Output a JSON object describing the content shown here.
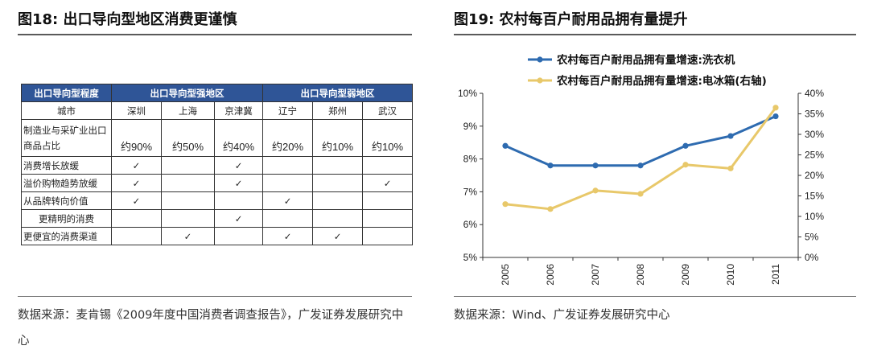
{
  "left": {
    "title": "图18: 出口导向型地区消费更谨慎",
    "table": {
      "header": [
        "出口导向型程度",
        "出口导向型强地区",
        "出口导向型弱地区"
      ],
      "city_label": "城市",
      "cities": [
        "深圳",
        "上海",
        "京津冀",
        "辽宁",
        "郑州",
        "武汉"
      ],
      "share_label": "制造业与采矿业出口商品占比",
      "shares": [
        "约90%",
        "约50%",
        "约40%",
        "约20%",
        "约10%",
        "约10%"
      ],
      "rows": [
        {
          "label": "消费增长放缓",
          "marks": [
            "✓",
            "",
            "✓",
            "",
            "",
            ""
          ]
        },
        {
          "label": "溢价购物趋势放缓",
          "marks": [
            "✓",
            "",
            "✓",
            "",
            "",
            "✓"
          ]
        },
        {
          "label": "从品牌转向价值",
          "marks": [
            "✓",
            "",
            "",
            "✓",
            "",
            ""
          ]
        },
        {
          "label": "更精明的消费",
          "marks": [
            "",
            "",
            "✓",
            "",
            "",
            ""
          ]
        },
        {
          "label": "更便宜的消费渠道",
          "marks": [
            "",
            "✓",
            "",
            "✓",
            "✓",
            ""
          ]
        }
      ]
    },
    "source": "数据来源：麦肯锡《2009年度中国消费者调查报告》，广发证券发展研究中心"
  },
  "right": {
    "title": "图19: 农村每百户耐用品拥有量提升",
    "source": "数据来源：Wind、广发证券发展研究中心"
  },
  "chart_data": {
    "type": "line",
    "title": "",
    "x": [
      "2005",
      "2006",
      "2007",
      "2008",
      "2009",
      "2010",
      "2011"
    ],
    "series": [
      {
        "name": "农村每百户耐用品拥有量增速:洗衣机",
        "axis": "left",
        "color": "#2e6bb0",
        "values": [
          8.4,
          7.8,
          7.8,
          7.8,
          8.4,
          8.7,
          9.3
        ]
      },
      {
        "name": "农村每百户耐用品拥有量增速:电冰箱(右轴)",
        "axis": "right",
        "color": "#e8c86a",
        "values": [
          13.0,
          11.8,
          16.3,
          15.5,
          22.6,
          21.7,
          36.5
        ]
      }
    ],
    "y_left": {
      "min": 5,
      "max": 10,
      "step": 1,
      "ticks": [
        "5%",
        "6%",
        "7%",
        "8%",
        "9%",
        "10%"
      ]
    },
    "y_right": {
      "min": 0,
      "max": 40,
      "step": 5,
      "ticks": [
        "0%",
        "5%",
        "10%",
        "15%",
        "20%",
        "25%",
        "30%",
        "35%",
        "40%"
      ]
    },
    "legend_position": "top",
    "grid": false
  }
}
